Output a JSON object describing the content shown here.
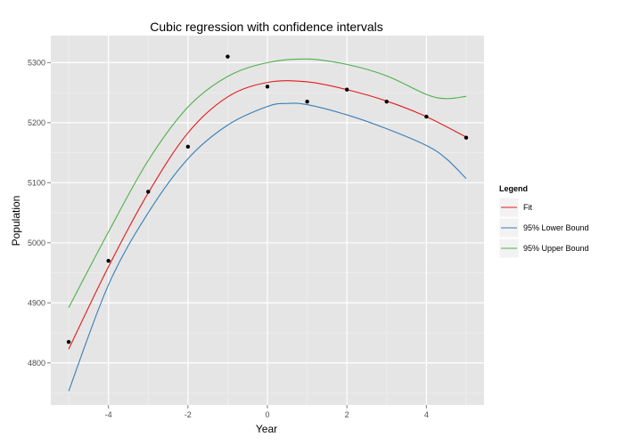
{
  "chart_data": {
    "type": "line",
    "title": "Cubic regression with confidence intervals",
    "xlabel": "Year",
    "ylabel": "Population",
    "xlim": [
      -5.45,
      5.45
    ],
    "ylim": [
      4730,
      5345
    ],
    "x_ticks": [
      -4,
      -2,
      0,
      2,
      4
    ],
    "y_ticks": [
      4800,
      4900,
      5000,
      5100,
      5200,
      5300
    ],
    "grid": true,
    "legend": {
      "title": "Legend",
      "position": "right",
      "entries": [
        "Fit",
        "95% Lower Bound",
        "95% Upper Bound"
      ]
    },
    "points": {
      "x": [
        -5,
        -4,
        -3,
        -2,
        -1,
        0,
        1,
        2,
        3,
        4,
        5
      ],
      "y": [
        4835,
        4970,
        5085,
        5160,
        5310,
        5260,
        5235,
        5255,
        5235,
        5210,
        5175
      ],
      "color": "#000000"
    },
    "series": [
      {
        "name": "Fit",
        "color": "#e41a1c",
        "x": [
          -5,
          -4,
          -3,
          -2,
          -1,
          0,
          1,
          2,
          3,
          4,
          5
        ],
        "y": [
          4823,
          4960,
          5083,
          5183,
          5243,
          5267,
          5268,
          5255,
          5236,
          5210,
          5176
        ]
      },
      {
        "name": "95% Lower Bound",
        "color": "#377eb8",
        "x": [
          -5,
          -4,
          -3,
          -2,
          -1,
          0,
          0.5,
          1,
          2,
          3,
          4,
          4.5,
          5
        ],
        "y": [
          4753,
          4930,
          5050,
          5140,
          5196,
          5227,
          5232,
          5230,
          5213,
          5190,
          5162,
          5140,
          5107
        ]
      },
      {
        "name": "95% Upper Bound",
        "color": "#4daf4a",
        "x": [
          -5,
          -4,
          -3,
          -2,
          -1,
          0,
          1,
          2,
          3,
          4,
          4.5,
          5
        ],
        "y": [
          4892,
          5018,
          5137,
          5226,
          5277,
          5300,
          5306,
          5297,
          5278,
          5247,
          5240,
          5244
        ]
      }
    ]
  }
}
